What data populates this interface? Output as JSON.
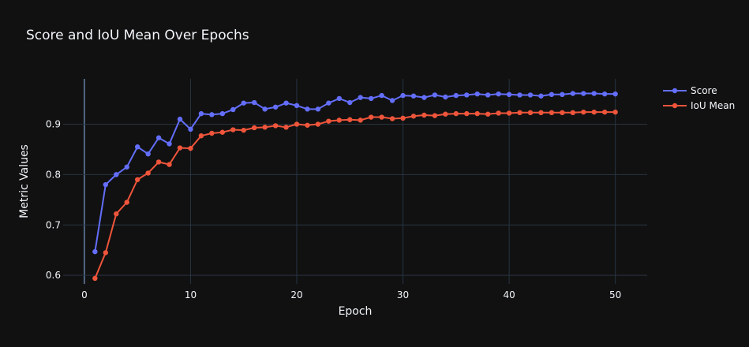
{
  "chart_data": {
    "type": "line",
    "title": "Score and IoU Mean Over Epochs",
    "xlabel": "Epoch",
    "ylabel": "Metric Values",
    "xlim": [
      -2.0,
      53.0
    ],
    "ylim": [
      0.583,
      0.99
    ],
    "xticks": [
      0,
      10,
      20,
      30,
      40,
      50
    ],
    "yticks": [
      0.6,
      0.7,
      0.8,
      0.9
    ],
    "grid": true,
    "legend_position": "top-right",
    "x": [
      1,
      2,
      3,
      4,
      5,
      6,
      7,
      8,
      9,
      10,
      11,
      12,
      13,
      14,
      15,
      16,
      17,
      18,
      19,
      20,
      21,
      22,
      23,
      24,
      25,
      26,
      27,
      28,
      29,
      30,
      31,
      32,
      33,
      34,
      35,
      36,
      37,
      38,
      39,
      40,
      41,
      42,
      43,
      44,
      45,
      46,
      47,
      48,
      49,
      50
    ],
    "series": [
      {
        "name": "Score",
        "color": "#636efa",
        "values": [
          0.647,
          0.78,
          0.8,
          0.815,
          0.855,
          0.841,
          0.873,
          0.861,
          0.91,
          0.89,
          0.921,
          0.919,
          0.921,
          0.929,
          0.942,
          0.943,
          0.93,
          0.934,
          0.942,
          0.937,
          0.93,
          0.93,
          0.942,
          0.951,
          0.943,
          0.953,
          0.951,
          0.957,
          0.947,
          0.957,
          0.956,
          0.953,
          0.958,
          0.954,
          0.957,
          0.958,
          0.96,
          0.958,
          0.96,
          0.959,
          0.958,
          0.958,
          0.956,
          0.959,
          0.959,
          0.961,
          0.961,
          0.961,
          0.96,
          0.96
        ]
      },
      {
        "name": "IoU Mean",
        "color": "#ef553b",
        "values": [
          0.594,
          0.645,
          0.722,
          0.745,
          0.79,
          0.803,
          0.825,
          0.82,
          0.853,
          0.852,
          0.877,
          0.882,
          0.884,
          0.889,
          0.888,
          0.893,
          0.894,
          0.897,
          0.894,
          0.9,
          0.898,
          0.9,
          0.906,
          0.908,
          0.909,
          0.908,
          0.914,
          0.914,
          0.911,
          0.912,
          0.916,
          0.918,
          0.917,
          0.92,
          0.921,
          0.921,
          0.921,
          0.92,
          0.922,
          0.922,
          0.923,
          0.923,
          0.923,
          0.923,
          0.923,
          0.923,
          0.924,
          0.924,
          0.924,
          0.924
        ]
      }
    ]
  }
}
